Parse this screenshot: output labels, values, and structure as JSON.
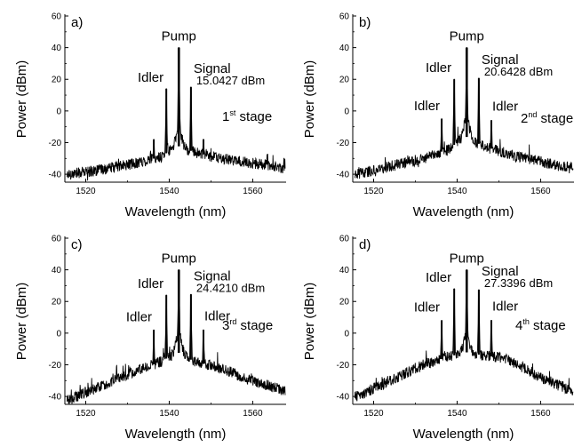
{
  "chart_data": [
    {
      "type": "line",
      "panel_label": "a)",
      "xlabel": "Wavelength (nm)",
      "ylabel": "Power (dBm)",
      "xlim": [
        1515,
        1568
      ],
      "ylim": [
        -45,
        60
      ],
      "xticks": [
        "1520",
        "1540",
        "1560"
      ],
      "yticks": [
        "60",
        "40",
        "20",
        "0",
        "-20",
        "-40"
      ],
      "stage_text": "1",
      "stage_sup": "st",
      "stage_suffix": " stage",
      "floor": [
        [
          1516,
          -40
        ],
        [
          1524,
          -37
        ],
        [
          1532,
          -33
        ],
        [
          1538,
          -29
        ],
        [
          1542,
          -22
        ],
        [
          1546,
          -26
        ],
        [
          1552,
          -30
        ],
        [
          1560,
          -33
        ],
        [
          1567,
          -36
        ]
      ],
      "peaks": [
        {
          "x": 1536.3,
          "y": -18,
          "label": ""
        },
        {
          "x": 1539.3,
          "y": 14,
          "label": "Idler"
        },
        {
          "x": 1542.3,
          "y": 40,
          "label": "Pump"
        },
        {
          "x": 1545.2,
          "y": 15.0427,
          "label": "Signal"
        },
        {
          "x": 1548.2,
          "y": -18,
          "label": ""
        }
      ],
      "signal_value": "15.0427 dBm",
      "labels": {
        "pump": "Pump",
        "signal": "Signal",
        "idler1": "Idler",
        "idler2": ""
      }
    },
    {
      "type": "line",
      "panel_label": "b)",
      "xlabel": "Wavelength (nm)",
      "ylabel": "Power (dBm)",
      "xlim": [
        1515,
        1568
      ],
      "ylim": [
        -45,
        60
      ],
      "xticks": [
        "1520",
        "1540",
        "1560"
      ],
      "yticks": [
        "60",
        "40",
        "20",
        "0",
        "-20",
        "-40"
      ],
      "stage_text": "2",
      "stage_sup": "nd",
      "stage_suffix": " stage",
      "floor": [
        [
          1516,
          -40
        ],
        [
          1524,
          -35
        ],
        [
          1532,
          -30
        ],
        [
          1538,
          -24
        ],
        [
          1542,
          -16
        ],
        [
          1546,
          -22
        ],
        [
          1552,
          -27
        ],
        [
          1560,
          -32
        ],
        [
          1567,
          -36
        ]
      ],
      "peaks": [
        {
          "x": 1536.3,
          "y": -5,
          "label": "Idler"
        },
        {
          "x": 1539.3,
          "y": 20,
          "label": "Idler"
        },
        {
          "x": 1542.3,
          "y": 40,
          "label": "Pump"
        },
        {
          "x": 1545.2,
          "y": 20.6428,
          "label": "Signal"
        },
        {
          "x": 1548.2,
          "y": -6,
          "label": "Idler"
        }
      ],
      "signal_value": "20.6428 dBm",
      "labels": {
        "pump": "Pump",
        "signal": "Signal",
        "idler1": "Idler",
        "idler2": "Idler"
      }
    },
    {
      "type": "line",
      "panel_label": "c)",
      "xlabel": "Wavelength (nm)",
      "ylabel": "Power (dBm)",
      "xlim": [
        1515,
        1568
      ],
      "ylim": [
        -45,
        60
      ],
      "xticks": [
        "1520",
        "1540",
        "1560"
      ],
      "yticks": [
        "60",
        "40",
        "20",
        "0",
        "-20",
        "-40"
      ],
      "stage_text": "3",
      "stage_sup": "rd",
      "stage_suffix": " stage",
      "floor": [
        [
          1516,
          -42
        ],
        [
          1524,
          -33
        ],
        [
          1532,
          -24
        ],
        [
          1538,
          -18
        ],
        [
          1542,
          -12
        ],
        [
          1546,
          -18
        ],
        [
          1552,
          -22
        ],
        [
          1560,
          -30
        ],
        [
          1567,
          -36
        ]
      ],
      "peaks": [
        {
          "x": 1536.3,
          "y": 2,
          "label": "Idler"
        },
        {
          "x": 1539.3,
          "y": 24,
          "label": "Idler"
        },
        {
          "x": 1542.3,
          "y": 40,
          "label": "Pump"
        },
        {
          "x": 1545.2,
          "y": 24.421,
          "label": "Signal"
        },
        {
          "x": 1548.2,
          "y": 2,
          "label": "Idler"
        }
      ],
      "signal_value": "24.4210 dBm",
      "labels": {
        "pump": "Pump",
        "signal": "Signal",
        "idler1": "Idler",
        "idler2": "Idler"
      }
    },
    {
      "type": "line",
      "panel_label": "d)",
      "xlabel": "Wavelength (nm)",
      "ylabel": "Power (dBm)",
      "xlim": [
        1515,
        1568
      ],
      "ylim": [
        -45,
        60
      ],
      "xticks": [
        "1520",
        "1540",
        "1560"
      ],
      "yticks": [
        "60",
        "40",
        "20",
        "0",
        "-20",
        "-40"
      ],
      "stage_text": "4",
      "stage_sup": "th",
      "stage_suffix": " stage",
      "floor": [
        [
          1516,
          -40
        ],
        [
          1524,
          -30
        ],
        [
          1532,
          -20
        ],
        [
          1538,
          -15
        ],
        [
          1542,
          -12
        ],
        [
          1546,
          -14
        ],
        [
          1552,
          -16
        ],
        [
          1560,
          -28
        ],
        [
          1567,
          -36
        ]
      ],
      "peaks": [
        {
          "x": 1536.3,
          "y": 8,
          "label": "Idler"
        },
        {
          "x": 1539.3,
          "y": 28,
          "label": "Idler"
        },
        {
          "x": 1542.3,
          "y": 40,
          "label": "Pump"
        },
        {
          "x": 1545.2,
          "y": 27.3396,
          "label": "Signal"
        },
        {
          "x": 1548.2,
          "y": 8,
          "label": "Idler"
        }
      ],
      "signal_value": "27.3396 dBm",
      "labels": {
        "pump": "Pump",
        "signal": "Signal",
        "idler1": "Idler",
        "idler2": "Idler"
      }
    }
  ]
}
